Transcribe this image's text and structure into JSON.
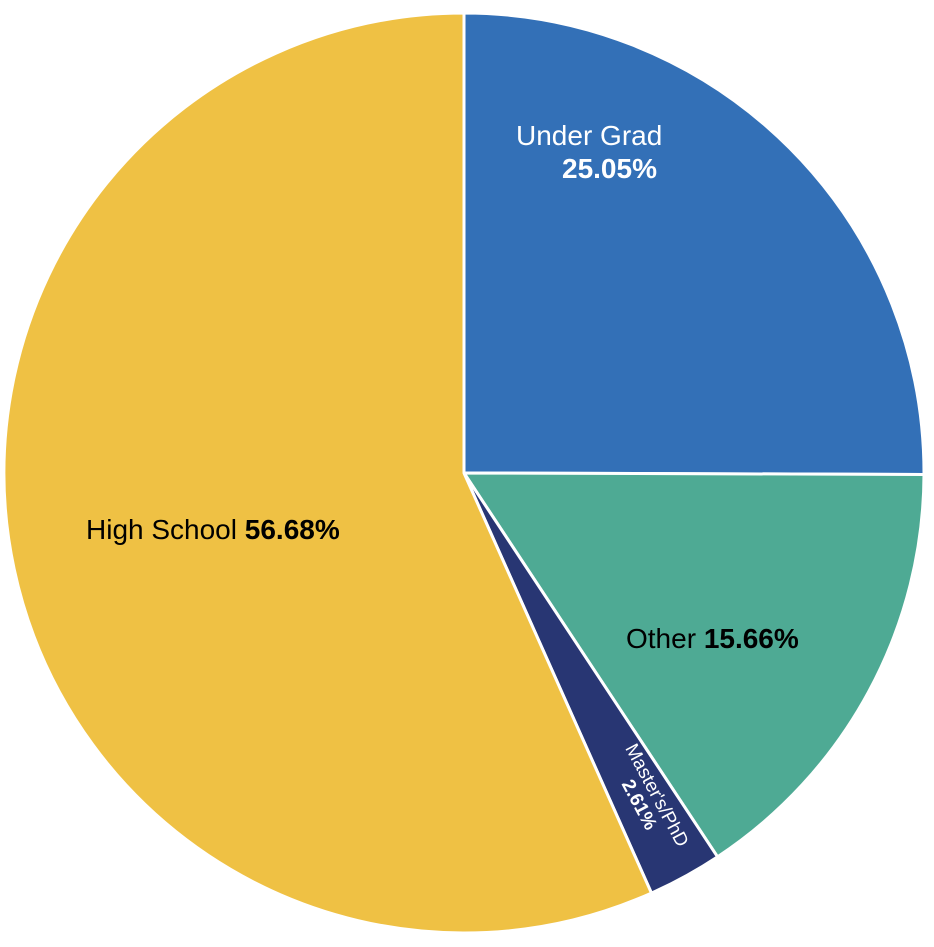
{
  "chart_data": {
    "type": "pie",
    "title": "",
    "slices": [
      {
        "label": "Under Grad",
        "value": 25.05,
        "value_label": "25.05%",
        "color": "#3370b7",
        "text_color": "#ffffff"
      },
      {
        "label": "Other",
        "value": 15.66,
        "value_label": "15.66%",
        "color": "#4eaa94",
        "text_color": "#000000"
      },
      {
        "label": "Master's/PhD",
        "value": 2.61,
        "value_label": "2.61%",
        "color": "#283673",
        "text_color": "#ffffff"
      },
      {
        "label": "High School",
        "value": 56.68,
        "value_label": "56.68%",
        "color": "#efc144",
        "text_color": "#000000"
      }
    ],
    "start_angle_deg": 0,
    "direction": "clockwise",
    "slice_border_color": "#ffffff",
    "legend": "none"
  }
}
